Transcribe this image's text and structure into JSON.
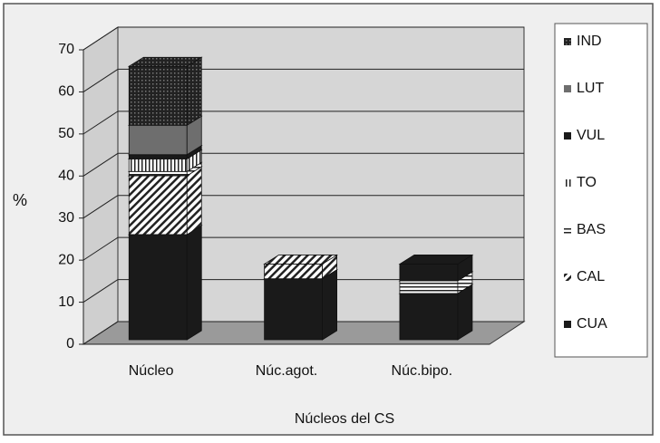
{
  "chart_data": {
    "type": "bar3d_stacked",
    "ylabel": "%",
    "xlabel": "Núcleos del CS",
    "categories": [
      "Núcleo",
      "Núc.agot.",
      "Núc.bipo."
    ],
    "ylim": [
      0,
      70
    ],
    "yticks": [
      0,
      10,
      20,
      30,
      40,
      50,
      60,
      70
    ],
    "grid": true,
    "legend": "right",
    "series": [
      {
        "name": "CUA",
        "color": "#1a1a1a",
        "pattern": "solid",
        "values": [
          25,
          14.5,
          11
        ]
      },
      {
        "name": "CAL",
        "color": "#ffffff",
        "pattern": "diagonal",
        "values": [
          14,
          3.5,
          0
        ]
      },
      {
        "name": "BAS",
        "color": "#ffffff",
        "pattern": "horizontal",
        "values": [
          1,
          0,
          3
        ]
      },
      {
        "name": "TO",
        "color": "#ffffff",
        "pattern": "vertical",
        "values": [
          3,
          0,
          0
        ]
      },
      {
        "name": "VUL",
        "color": "#1a1a1a",
        "pattern": "solid",
        "values": [
          1,
          0,
          4
        ]
      },
      {
        "name": "LUT",
        "color": "#6e6e6e",
        "pattern": "solid",
        "values": [
          7,
          0,
          0
        ]
      },
      {
        "name": "IND",
        "color": "#2a2a2a",
        "pattern": "crosshatch",
        "values": [
          14,
          0,
          0
        ]
      }
    ]
  }
}
